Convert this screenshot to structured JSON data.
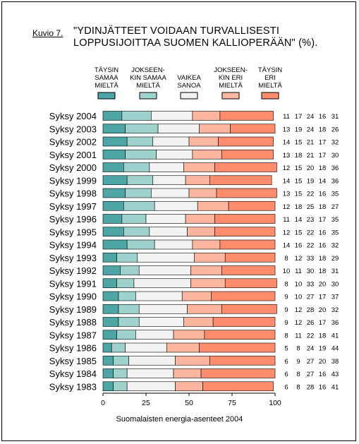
{
  "caption": "Kuvio 7.",
  "title": "\"YDINJÄTTEET VOIDAAN TURVALLISESTI LOPPUSIJOITTAA SUOMEN KALLIOPERÄÄN\" (%).",
  "source": "Suomalaisten energia-asenteet 2004",
  "colors": {
    "taysin_samaa": "#4da5a5",
    "jokseenkin_samaa": "#9fd1cd",
    "vaikea": "#f2f2f2",
    "jokseenkin_eri": "#fcb6a0",
    "taysin_eri": "#ff8c6c"
  },
  "chart_data": {
    "type": "bar",
    "orientation": "horizontal",
    "stacked": "100%",
    "categories": [
      "Syksy 2004",
      "Syksy 2003",
      "Syksy 2002",
      "Syksy 2001",
      "Syksy 2000",
      "Syksy 1999",
      "Syksy 1998",
      "Syksy 1997",
      "Syksy 1996",
      "Syksy 1995",
      "Syksy 1994",
      "Syksy 1993",
      "Syksy 1992",
      "Syksy 1991",
      "Syksy 1990",
      "Syksy 1989",
      "Syksy 1988",
      "Syksy 1987",
      "Syksy 1986",
      "Syksy 1985",
      "Syksy 1984",
      "Syksy 1983"
    ],
    "series": [
      {
        "name": "TÄYSIN SAMAA MIELTÄ",
        "legend_lines": [
          "TÄYSIN",
          "SAMAA",
          "MIELTÄ"
        ],
        "color_key": "taysin_samaa",
        "values": [
          11,
          13,
          14,
          13,
          12,
          14,
          13,
          12,
          11,
          12,
          14,
          8,
          10,
          8,
          9,
          9,
          9,
          8,
          5,
          6,
          6,
          6
        ]
      },
      {
        "name": "JOKSEENKIN SAMAA MIELTÄ",
        "legend_lines": [
          "JOKSEEN-",
          "KIN SAMAA",
          "MIELTÄ"
        ],
        "color_key": "jokseenkin_samaa",
        "values": [
          17,
          19,
          15,
          18,
          15,
          15,
          15,
          18,
          14,
          15,
          16,
          12,
          11,
          10,
          10,
          12,
          12,
          11,
          8,
          9,
          8,
          8
        ]
      },
      {
        "name": "VAIKEA SANOA",
        "legend_lines": [
          "VAIKEA",
          "SANOA"
        ],
        "color_key": "vaikea",
        "values": [
          24,
          24,
          21,
          21,
          20,
          19,
          22,
          25,
          23,
          22,
          22,
          33,
          30,
          33,
          27,
          28,
          26,
          22,
          24,
          27,
          27,
          28
        ]
      },
      {
        "name": "JOKSEENKIN ERI MIELTÄ",
        "legend_lines": [
          "JOKSEEN-",
          "KIN ERI",
          "MIELTÄ"
        ],
        "color_key": "jokseenkin_eri",
        "values": [
          16,
          18,
          17,
          17,
          18,
          14,
          16,
          18,
          17,
          16,
          16,
          18,
          18,
          20,
          17,
          20,
          17,
          18,
          19,
          20,
          16,
          16
        ]
      },
      {
        "name": "TÄYSIN ERI MIELTÄ",
        "legend_lines": [
          "TÄYSIN",
          "ERI",
          "MIELTÄ"
        ],
        "color_key": "taysin_eri",
        "values": [
          31,
          26,
          32,
          30,
          36,
          36,
          35,
          27,
          35,
          35,
          32,
          29,
          31,
          30,
          37,
          32,
          36,
          41,
          44,
          38,
          43,
          41
        ]
      }
    ],
    "x_ticks": [
      0,
      25,
      50,
      75,
      100
    ],
    "xlim": [
      0,
      100
    ],
    "grid": false,
    "legend_position": "top",
    "value_columns_position": "right"
  }
}
